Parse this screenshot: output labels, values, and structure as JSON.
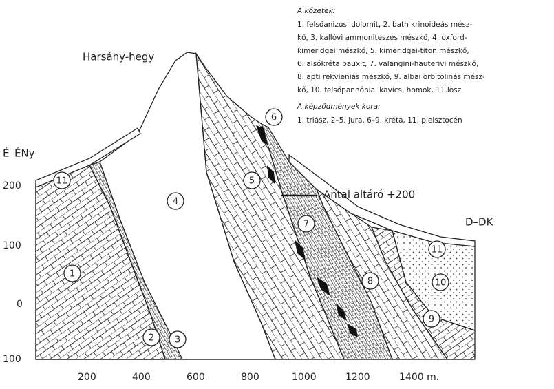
{
  "legend": {
    "rocks_title": "A kőzetek:",
    "rocks_lines": [
      "1. felsőanizusi dolomit, 2. bath krinoideás mész-",
      "kő, 3. kallóvi ammoniteszes mészkő, 4. oxford-",
      "kimeridgei mészkő, 5. kimeridgei-titon mészkő,",
      "6. alsókréta bauxit, 7. valangini-hauterivi mészkő,",
      "8. apti rekvieniás mészkő, 9. albai orbitolinás mész-",
      "kő, 10. felsőpannóniai kavics, homok, 11.lösz"
    ],
    "age_title": "A képződmények kora:",
    "age_text": "1. triász, 2–5. jura, 6–9. kréta, 11. pleisztocén"
  },
  "labels": {
    "mountain": "Harsány-hegy",
    "north": "É–ÉNy",
    "south": "D–DK",
    "adit": "Antal altáró +200"
  },
  "y_axis": [
    "200",
    "100",
    "0",
    "100"
  ],
  "x_axis": [
    "200",
    "400",
    "600",
    "800",
    "1000",
    "1200",
    "1400 m."
  ],
  "units": [
    "11",
    "1",
    "2",
    "3",
    "4",
    "5",
    "6",
    "7",
    "8",
    "9",
    "10",
    "11"
  ]
}
